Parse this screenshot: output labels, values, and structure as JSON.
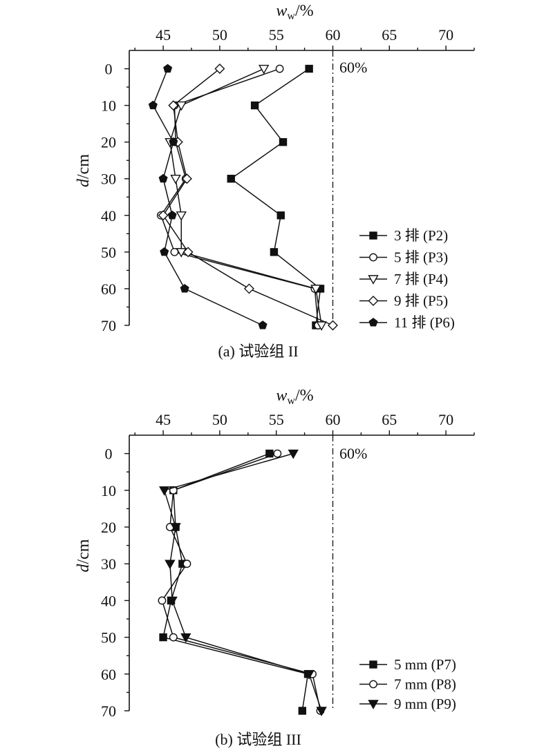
{
  "chart_data": [
    {
      "type": "line",
      "caption": "(a) 试验组 II",
      "xlabel_main": "w",
      "xlabel_sub": "w",
      "xlabel_unit": "/%",
      "ylabel_main": "d",
      "ylabel_unit": "/cm",
      "xlim": [
        42,
        72.5
      ],
      "ylim": [
        -5,
        70
      ],
      "xticks": [
        45,
        50,
        55,
        60,
        65,
        70
      ],
      "yticks": [
        0,
        10,
        20,
        30,
        40,
        50,
        60,
        70
      ],
      "xtick_labels": [
        "45",
        "50",
        "55",
        "60",
        "65",
        "70"
      ],
      "ytick_labels": [
        "0",
        "10",
        "20",
        "30",
        "40",
        "50",
        "60",
        "70"
      ],
      "reference_line": {
        "x": 60,
        "label": "60%"
      },
      "legend_position": "right",
      "series": [
        {
          "name": "3 排 (P2)",
          "marker": "square-filled",
          "x": [
            57.9,
            53.1,
            55.6,
            51.0,
            55.4,
            54.8,
            58.9,
            58.5
          ],
          "y": [
            0,
            10,
            20,
            30,
            40,
            50,
            60,
            70
          ]
        },
        {
          "name": "5 排 (P3)",
          "marker": "circle-open",
          "x": [
            55.3,
            46.0,
            46.1,
            47.0,
            44.8,
            46.0,
            58.4,
            58.7
          ],
          "y": [
            0,
            10,
            20,
            30,
            40,
            50,
            60,
            70
          ]
        },
        {
          "name": "7 排 (P4)",
          "marker": "triangle-down-open",
          "x": [
            53.9,
            46.6,
            45.6,
            46.1,
            46.6,
            46.6,
            58.5,
            59.0
          ],
          "y": [
            0,
            10,
            20,
            30,
            40,
            50,
            60,
            70
          ]
        },
        {
          "name": "9 排 (P5)",
          "marker": "diamond-open",
          "x": [
            50.0,
            45.9,
            46.3,
            47.1,
            45.0,
            47.2,
            52.6,
            60.0
          ],
          "y": [
            0,
            10,
            20,
            30,
            40,
            50,
            60,
            70
          ]
        },
        {
          "name": "11 排 (P6)",
          "marker": "pentagon-filled",
          "x": [
            45.4,
            44.1,
            45.9,
            45.0,
            45.8,
            45.1,
            46.9,
            53.8
          ],
          "y": [
            0,
            10,
            20,
            30,
            40,
            50,
            60,
            70
          ]
        }
      ]
    },
    {
      "type": "line",
      "caption": "(b) 试验组 III",
      "xlabel_main": "w",
      "xlabel_sub": "w",
      "xlabel_unit": "/%",
      "ylabel_main": "d",
      "ylabel_unit": "/cm",
      "xlim": [
        42,
        72.5
      ],
      "ylim": [
        -5,
        70
      ],
      "xticks": [
        45,
        50,
        55,
        60,
        65,
        70
      ],
      "yticks": [
        0,
        10,
        20,
        30,
        40,
        50,
        60,
        70
      ],
      "xtick_labels": [
        "45",
        "50",
        "55",
        "60",
        "65",
        "70"
      ],
      "ytick_labels": [
        "0",
        "10",
        "20",
        "30",
        "40",
        "50",
        "60",
        "70"
      ],
      "reference_line": {
        "x": 60,
        "label": "60%"
      },
      "legend_position": "bottom-right",
      "series": [
        {
          "name": "5 mm (P7)",
          "marker": "square-filled",
          "x": [
            54.4,
            45.9,
            46.1,
            46.7,
            45.7,
            45.0,
            57.8,
            57.3
          ],
          "y": [
            0,
            10,
            20,
            30,
            40,
            50,
            60,
            70
          ]
        },
        {
          "name": "7 mm (P8)",
          "marker": "circle-open",
          "x": [
            55.1,
            45.9,
            45.6,
            47.1,
            44.9,
            45.9,
            58.2,
            58.9
          ],
          "y": [
            0,
            10,
            20,
            30,
            40,
            50,
            60,
            70
          ]
        },
        {
          "name": "9 mm (P9)",
          "marker": "triangle-down-filled",
          "x": [
            56.5,
            45.1,
            46.1,
            45.6,
            45.8,
            47.0,
            57.9,
            59.0
          ],
          "y": [
            0,
            10,
            20,
            30,
            40,
            50,
            60,
            70
          ]
        }
      ]
    }
  ]
}
